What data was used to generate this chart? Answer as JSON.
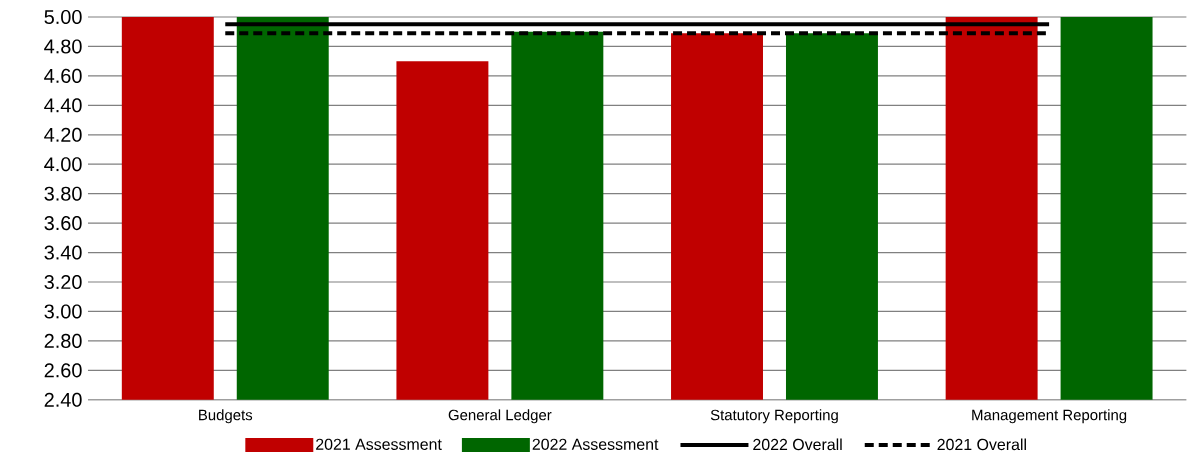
{
  "chart_data": {
    "type": "bar",
    "categories": [
      "Budgets",
      "General Ledger",
      "Statutory Reporting",
      "Management Reporting"
    ],
    "series": [
      {
        "name": "2021 Assessment",
        "color": "#c00000",
        "values": [
          5.0,
          4.7,
          4.89,
          5.0
        ]
      },
      {
        "name": "2022 Assessment",
        "color": "#006600",
        "values": [
          5.0,
          4.9,
          4.89,
          5.0
        ]
      },
      {
        "name": "2022 Overall",
        "type": "line",
        "color": "#000000",
        "line_style": "solid",
        "values": [
          4.95,
          4.95,
          4.95,
          4.95
        ]
      },
      {
        "name": "2021 Overall",
        "type": "line",
        "color": "#000000",
        "line_style": "dashed",
        "values": [
          4.89,
          4.89,
          4.89,
          4.89
        ]
      }
    ],
    "ylim": [
      2.4,
      5.0
    ],
    "yticks": [
      {
        "value": 2.4,
        "label": "2.40"
      },
      {
        "value": 2.6,
        "label": "2.60"
      },
      {
        "value": 2.8,
        "label": "2.80"
      },
      {
        "value": 3.0,
        "label": "3.00"
      },
      {
        "value": 3.2,
        "label": "3.20"
      },
      {
        "value": 3.4,
        "label": "3.40"
      },
      {
        "value": 3.6,
        "label": "3.60"
      },
      {
        "value": 3.8,
        "label": "3.80"
      },
      {
        "value": 4.0,
        "label": "4.00"
      },
      {
        "value": 4.2,
        "label": "4.20"
      },
      {
        "value": 4.4,
        "label": "4.40"
      },
      {
        "value": 4.6,
        "label": "4.60"
      },
      {
        "value": 4.8,
        "label": "4.80"
      },
      {
        "value": 5.0,
        "label": "5.00"
      }
    ],
    "grid": "y",
    "legend": "bottom"
  }
}
